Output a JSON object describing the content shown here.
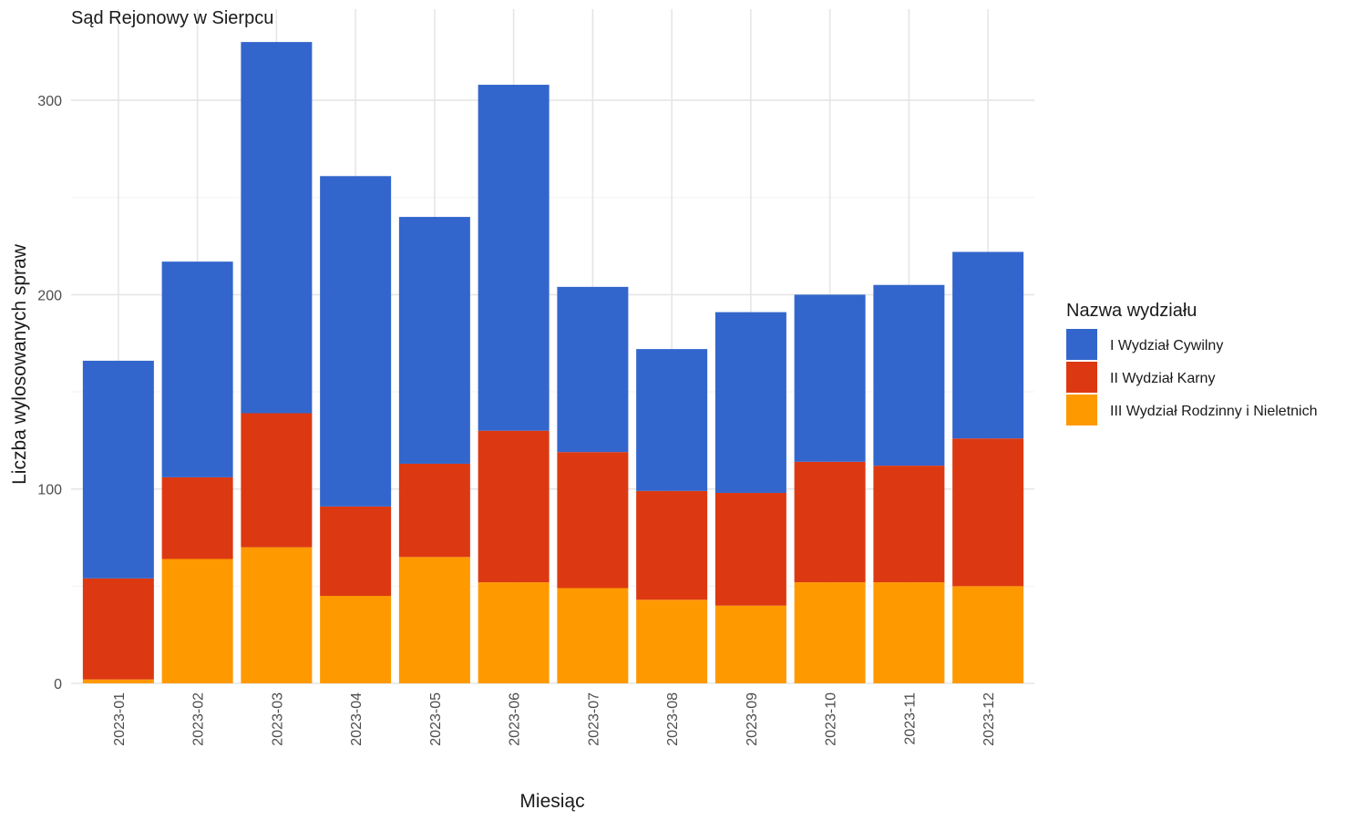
{
  "chart_data": {
    "type": "bar",
    "stacked": true,
    "title": "Sąd Rejonowy w Sierpcu",
    "xlabel": "Miesiąc",
    "ylabel": "Liczba wylosowanych spraw",
    "ylim": [
      0,
      345
    ],
    "yticks": [
      0,
      100,
      200,
      300
    ],
    "grid": true,
    "legend_title": "Nazwa wydziału",
    "legend_position": "right",
    "categories": [
      "2023-01",
      "2023-02",
      "2023-03",
      "2023-04",
      "2023-05",
      "2023-06",
      "2023-07",
      "2023-08",
      "2023-09",
      "2023-10",
      "2023-11",
      "2023-12"
    ],
    "series": [
      {
        "name": "III Wydział Rodzinny i Nieletnich",
        "color": "#FF9900",
        "values": [
          2,
          64,
          70,
          45,
          65,
          52,
          49,
          43,
          40,
          52,
          52,
          50
        ]
      },
      {
        "name": "II Wydział Karny",
        "color": "#DC3912",
        "values": [
          52,
          42,
          69,
          46,
          48,
          78,
          70,
          56,
          58,
          62,
          60,
          76
        ]
      },
      {
        "name": "I Wydział Cywilny",
        "color": "#3366CC",
        "values": [
          112,
          111,
          191,
          170,
          127,
          178,
          85,
          73,
          93,
          86,
          93,
          96
        ]
      }
    ],
    "legend_order": [
      "I Wydział Cywilny",
      "II Wydział Karny",
      "III Wydział Rodzinny i Nieletnich"
    ]
  }
}
